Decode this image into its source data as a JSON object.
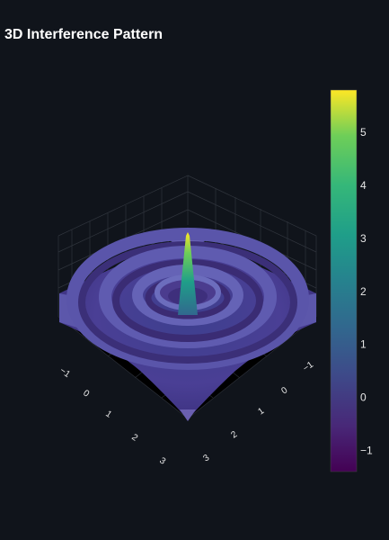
{
  "chart_data": {
    "type": "surface",
    "title": "3D Interference Pattern",
    "function": "z = sin(3r)/r pattern with central peak",
    "x_ticks": [
      "−1",
      "0",
      "1",
      "2",
      "3"
    ],
    "y_ticks": [
      "−1",
      "0",
      "1",
      "2",
      "3"
    ],
    "colorbar": {
      "colorscale": "Viridis",
      "range": [
        -1.4,
        5.8
      ],
      "ticks": [
        {
          "value": 5,
          "label": "5"
        },
        {
          "value": 4,
          "label": "4"
        },
        {
          "value": 3,
          "label": "3"
        },
        {
          "value": 2,
          "label": "2"
        },
        {
          "value": 1,
          "label": "1"
        },
        {
          "value": 0,
          "label": "0"
        },
        {
          "value": -1,
          "label": "−1"
        }
      ]
    },
    "z_peak": 5.8
  },
  "colors": {
    "background": "#10141b",
    "text": "#ffffff",
    "tick_text": "#e8e8e8",
    "grid": "#3a3f47"
  }
}
